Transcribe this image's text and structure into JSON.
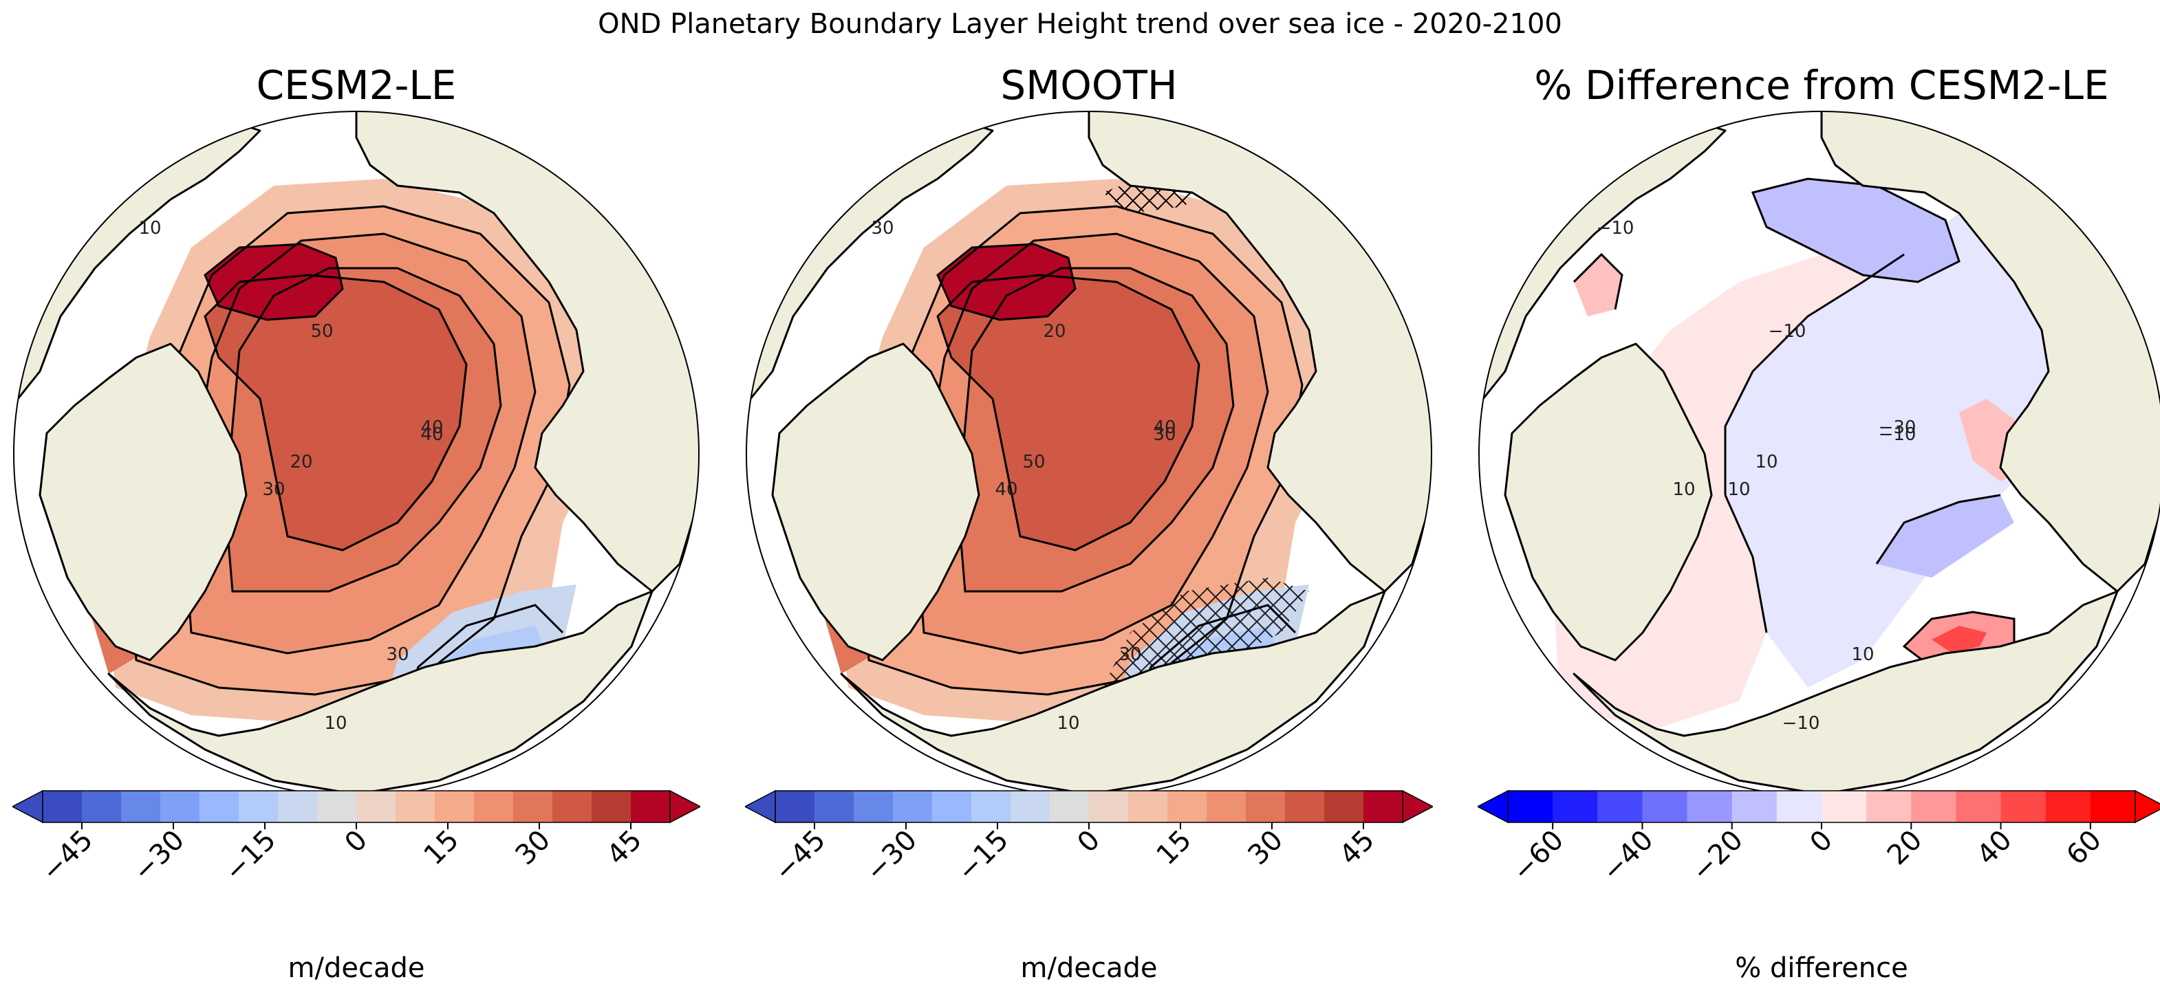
{
  "suptitle": "OND Planetary Boundary Layer Height trend over sea ice - 2020-2100",
  "panels": [
    {
      "title": "CESM2-LE",
      "colorbar_label": "m/decade",
      "colormap": "coolwarm",
      "colorbar_ticks": [
        "−45",
        "−30",
        "−15",
        "0",
        "15",
        "30",
        "45"
      ],
      "colorbar_levels": [
        "#3b4cc0",
        "#4e6ad6",
        "#6688e8",
        "#7fa1f5",
        "#99b8fe",
        "#b2cbf9",
        "#c9d7ef",
        "#dcdddd",
        "#ecd3c5",
        "#f4c1a9",
        "#f5aa8c",
        "#ee9172",
        "#e1765a",
        "#cf5944",
        "#b73c32",
        "#b40426"
      ],
      "contour_labels": [
        "10",
        "20",
        "30",
        "40",
        "50",
        "40",
        "30",
        "10"
      ]
    },
    {
      "title": "SMOOTH",
      "colorbar_label": "m/decade",
      "colormap": "coolwarm",
      "colorbar_ticks": [
        "−45",
        "−30",
        "−15",
        "0",
        "15",
        "30",
        "45"
      ],
      "colorbar_levels": [
        "#3b4cc0",
        "#4e6ad6",
        "#6688e8",
        "#7fa1f5",
        "#99b8fe",
        "#b2cbf9",
        "#c9d7ef",
        "#dcdddd",
        "#ecd3c5",
        "#f4c1a9",
        "#f5aa8c",
        "#ee9172",
        "#e1765a",
        "#cf5944",
        "#b73c32",
        "#b40426"
      ],
      "contour_labels": [
        "30",
        "50",
        "40",
        "30",
        "20",
        "40",
        "30",
        "10"
      ]
    },
    {
      "title": "% Difference from CESM2-LE",
      "colorbar_label": "% difference",
      "colormap": "bwr",
      "colorbar_ticks": [
        "−60",
        "−40",
        "−20",
        "0",
        "20",
        "40",
        "60"
      ],
      "colorbar_levels": [
        "#0000ff",
        "#2020ff",
        "#4848ff",
        "#7070ff",
        "#9898ff",
        "#c0c0ff",
        "#e6e6ff",
        "#ffe6e6",
        "#ffc0c0",
        "#ff9898",
        "#ff7070",
        "#ff4848",
        "#ff2020",
        "#ff0000"
      ],
      "contour_labels": [
        "−10",
        "10",
        "10",
        "−10",
        "−10",
        "−30",
        "10",
        "−10",
        "10"
      ]
    }
  ]
}
